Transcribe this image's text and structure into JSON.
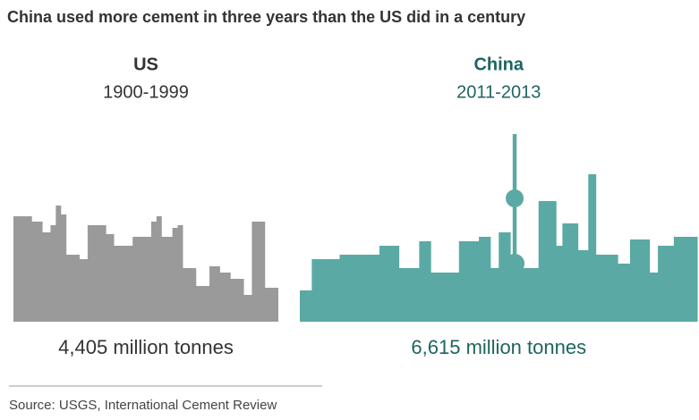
{
  "chart_data": {
    "type": "pictogram",
    "title": "China used more cement in three years than the US did in a century",
    "categories": [
      "US",
      "China"
    ],
    "periods": [
      "1900-1999",
      "2011-2013"
    ],
    "values": [
      4405,
      6615
    ],
    "value_labels": [
      "4,405 million tonnes",
      "6,615 million tonnes"
    ],
    "colors": [
      "#9a9a9a",
      "#5aa9a4"
    ],
    "source": "Source: USGS, International Cement Review"
  }
}
